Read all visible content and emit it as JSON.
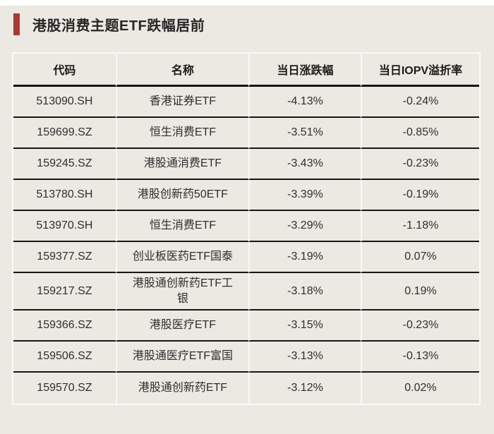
{
  "colors": {
    "accent": "#a93a32",
    "background": "#ece9e3",
    "row_rule_dark": "#161616",
    "grid_light": "#faf9f5"
  },
  "chart_data": {
    "type": "table",
    "title": "港股消费主题ETF跌幅居前",
    "columns": [
      "代码",
      "名称",
      "当日涨跌幅",
      "当日IOPV溢折率"
    ],
    "rows": [
      {
        "code": "513090.SH",
        "name": "香港证券ETF",
        "change_pct": "-4.13%",
        "iopv_premium_pct": "-0.24%"
      },
      {
        "code": "159699.SZ",
        "name": "恒生消费ETF",
        "change_pct": "-3.51%",
        "iopv_premium_pct": "-0.85%"
      },
      {
        "code": "159245.SZ",
        "name": "港股通消费ETF",
        "change_pct": "-3.43%",
        "iopv_premium_pct": "-0.23%"
      },
      {
        "code": "513780.SH",
        "name": "港股创新药50ETF",
        "change_pct": "-3.39%",
        "iopv_premium_pct": "-0.19%"
      },
      {
        "code": "513970.SH",
        "name": "恒生消费ETF",
        "change_pct": "-3.29%",
        "iopv_premium_pct": "-1.18%"
      },
      {
        "code": "159377.SZ",
        "name": "创业板医药ETF国泰",
        "change_pct": "-3.19%",
        "iopv_premium_pct": "0.07%"
      },
      {
        "code": "159217.SZ",
        "name": "港股通创新药ETF工银",
        "change_pct": "-3.18%",
        "iopv_premium_pct": "0.19%"
      },
      {
        "code": "159366.SZ",
        "name": "港股医疗ETF",
        "change_pct": "-3.15%",
        "iopv_premium_pct": "-0.23%"
      },
      {
        "code": "159506.SZ",
        "name": "港股通医疗ETF富国",
        "change_pct": "-3.13%",
        "iopv_premium_pct": "-0.13%"
      },
      {
        "code": "159570.SZ",
        "name": "港股通创新药ETF",
        "change_pct": "-3.12%",
        "iopv_premium_pct": "0.02%"
      }
    ]
  }
}
